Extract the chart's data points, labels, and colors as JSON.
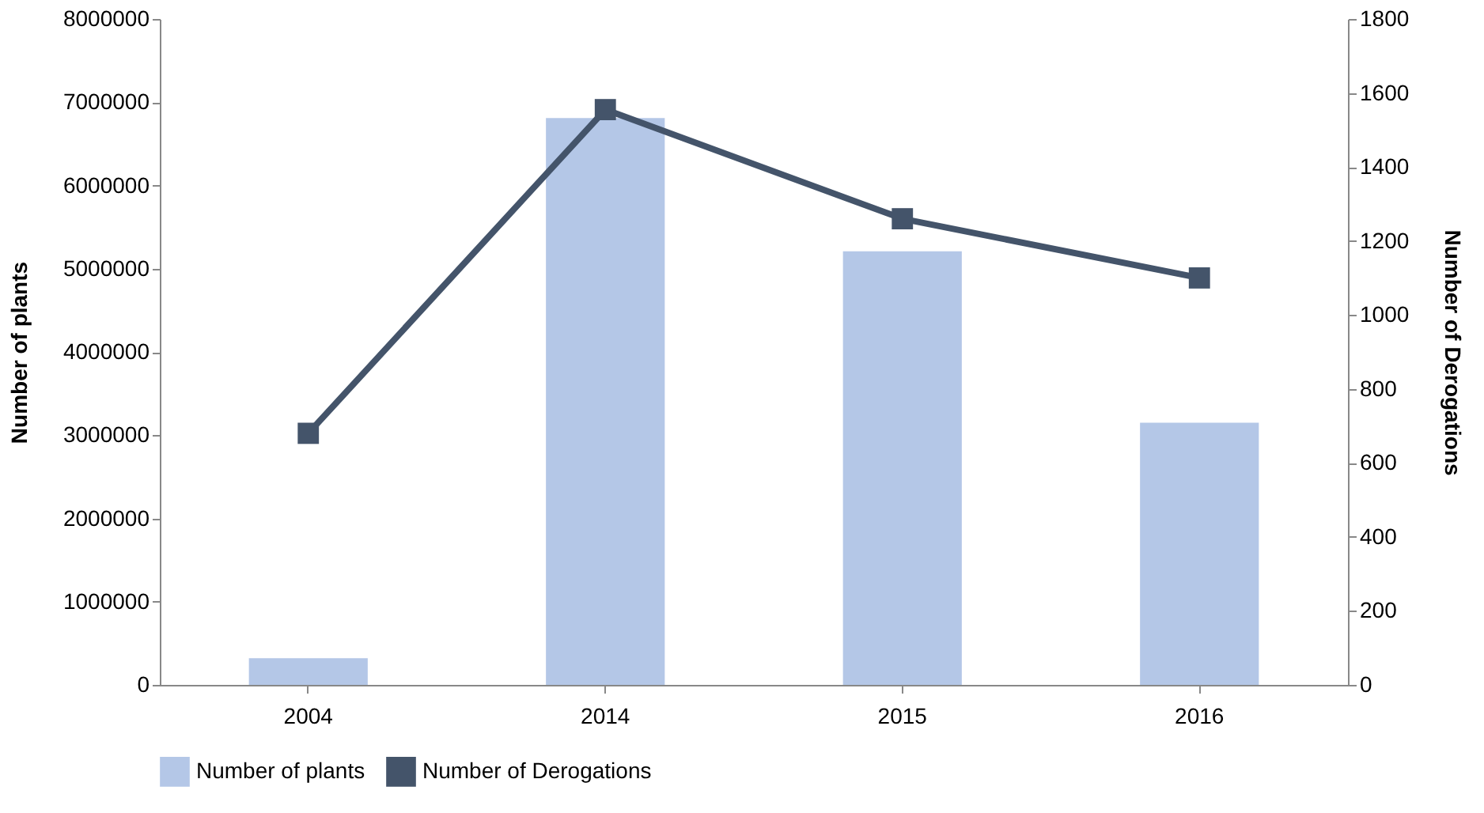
{
  "chart_data": {
    "type": "bar",
    "categories": [
      "2004",
      "2014",
      "2015",
      "2016"
    ],
    "ylabel": "Number of plants",
    "y2label": "Number of Derogations",
    "series": [
      {
        "name": "Number of plants",
        "color": "#b4c7e7",
        "values": [
          320000,
          6810000,
          5210000,
          3150000
        ]
      },
      {
        "name": "Number of Derogations",
        "type": "line",
        "axis": "y2",
        "color": "#44546a",
        "marker": "square",
        "values": [
          680,
          1555,
          1260,
          1100
        ]
      }
    ],
    "ylim": [
      0,
      8000000
    ],
    "yticks": [
      0,
      1000000,
      2000000,
      3000000,
      4000000,
      5000000,
      6000000,
      7000000,
      8000000
    ],
    "y2lim": [
      0,
      1800
    ],
    "y2ticks": [
      0,
      200,
      400,
      600,
      800,
      1000,
      1200,
      1400,
      1600,
      1800
    ],
    "grid": false,
    "legend": "bottom"
  }
}
